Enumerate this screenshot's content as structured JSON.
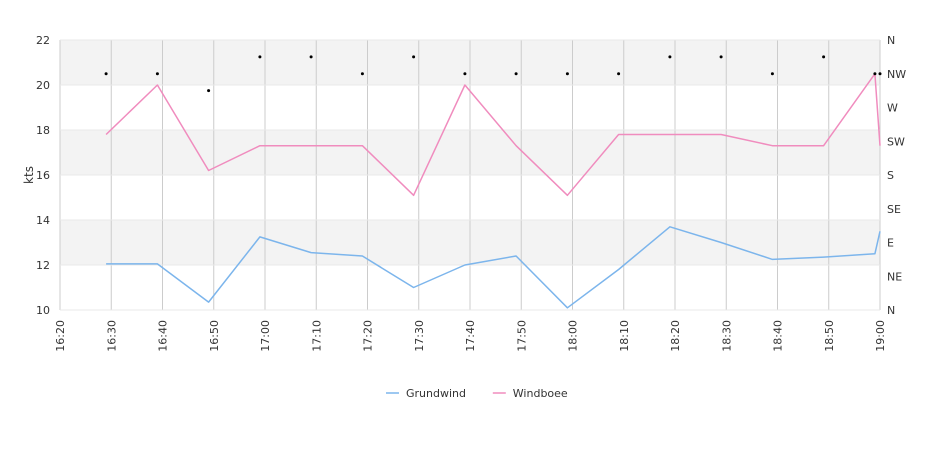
{
  "chart_data": {
    "type": "line",
    "ylabel": "kts",
    "ylim": [
      10,
      22
    ],
    "yticks": [
      "10",
      "12",
      "14",
      "16",
      "18",
      "20",
      "22"
    ],
    "xlim": [
      "16:20",
      "19:00"
    ],
    "xticks": [
      "16:20",
      "16:30",
      "16:40",
      "16:50",
      "17:00",
      "17:10",
      "17:20",
      "17:30",
      "17:40",
      "17:50",
      "18:00",
      "18:10",
      "18:20",
      "18:30",
      "18:40",
      "18:50",
      "19:00"
    ],
    "y2ticks": [
      "N",
      "NE",
      "E",
      "SE",
      "S",
      "SW",
      "W",
      "NW",
      "N"
    ],
    "grid": "vertical lines at x ticks; alternating gray bands every 2 kts",
    "legend_position": "bottom-center",
    "series": [
      {
        "name": "Grundwind",
        "color": "#7cb5ec",
        "x": [
          "16:29",
          "16:39",
          "16:49",
          "16:59",
          "17:09",
          "17:19",
          "17:29",
          "17:39",
          "17:49",
          "17:59",
          "18:09",
          "18:19",
          "18:29",
          "18:39",
          "18:49",
          "18:59",
          "19:00"
        ],
        "values": [
          12.05,
          12.05,
          10.35,
          13.25,
          12.55,
          12.4,
          11.0,
          12.0,
          12.4,
          10.1,
          11.8,
          13.7,
          13.0,
          12.25,
          12.35,
          12.5,
          13.5
        ]
      },
      {
        "name": "Windboee",
        "color": "#f08cbe",
        "x": [
          "16:29",
          "16:39",
          "16:49",
          "16:59",
          "17:09",
          "17:19",
          "17:29",
          "17:39",
          "17:49",
          "17:59",
          "18:09",
          "18:19",
          "18:29",
          "18:39",
          "18:49",
          "18:59",
          "19:00"
        ],
        "values": [
          17.8,
          20.0,
          16.2,
          17.3,
          17.3,
          17.3,
          15.1,
          20.0,
          17.3,
          15.1,
          17.8,
          17.8,
          17.8,
          17.3,
          17.3,
          20.5,
          17.3
        ]
      }
    ],
    "direction_points": [
      {
        "x": "16:29",
        "dir": "NW"
      },
      {
        "x": "16:39",
        "dir": "NW"
      },
      {
        "x": "16:49",
        "dir": "WNW"
      },
      {
        "x": "16:59",
        "dir": "NNW"
      },
      {
        "x": "17:09",
        "dir": "NNW"
      },
      {
        "x": "17:19",
        "dir": "NW"
      },
      {
        "x": "17:29",
        "dir": "NNW"
      },
      {
        "x": "17:39",
        "dir": "NW"
      },
      {
        "x": "17:49",
        "dir": "NW"
      },
      {
        "x": "17:59",
        "dir": "NW"
      },
      {
        "x": "18:09",
        "dir": "NW"
      },
      {
        "x": "18:19",
        "dir": "NNW"
      },
      {
        "x": "18:29",
        "dir": "NNW"
      },
      {
        "x": "18:39",
        "dir": "NW"
      },
      {
        "x": "18:49",
        "dir": "NNW"
      },
      {
        "x": "18:59",
        "dir": "NW"
      },
      {
        "x": "19:00",
        "dir": "NW"
      }
    ]
  }
}
